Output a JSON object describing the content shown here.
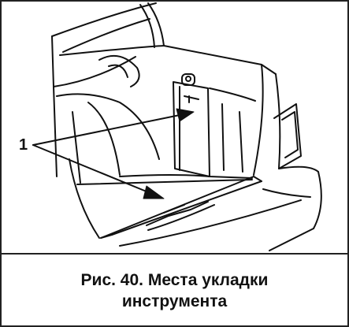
{
  "figure": {
    "callout_label": "1",
    "caption_line1": "Рис. 40. Места укладки",
    "caption_line2": "инструмента"
  },
  "colors": {
    "ink": "#111111",
    "paper": "#ffffff"
  }
}
